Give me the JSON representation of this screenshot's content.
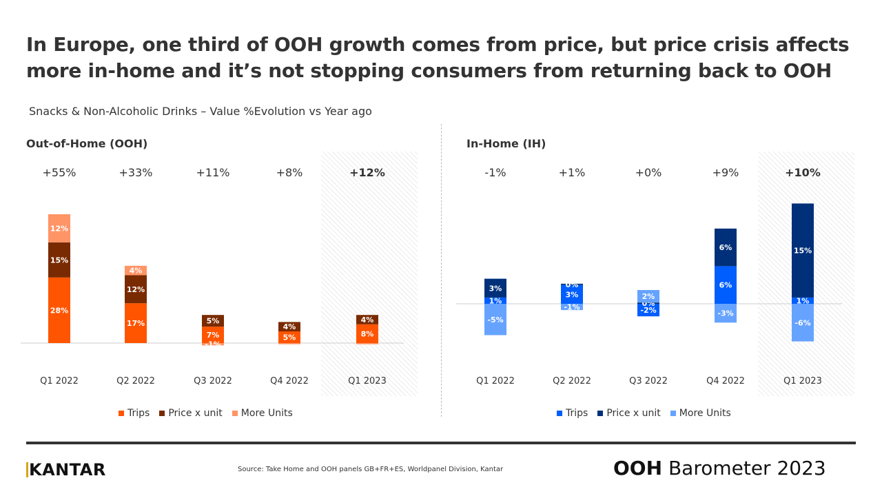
{
  "title": "In Europe, one third of OOH growth comes from price, but price crisis affects more in-home and it’s not stopping consumers from returning back to OOH",
  "subtitle": "Snacks & Non-Alcoholic Drinks – Value %Evolution vs Year ago",
  "footer": {
    "logo": "KANTAR",
    "source": "Source: Take Home and OOH panels GB+FR+ES, Worldpanel Division, Kantar",
    "brand_bold": "OOH",
    "brand_rest": " Barometer 2023"
  },
  "chart_data": [
    {
      "type": "bar",
      "stacked": true,
      "title": "Out-of-Home (OOH)",
      "categories": [
        "Q1 2022",
        "Q2 2022",
        "Q3 2022",
        "Q4 2022",
        "Q1 2023"
      ],
      "totals": [
        "+55%",
        "+33%",
        "+11%",
        "+8%",
        "+12%"
      ],
      "highlighted_category": "Q1 2023",
      "legend": "bottom",
      "series": [
        {
          "name": "Trips",
          "color": "#FF5500",
          "values": [
            28,
            17,
            7,
            5,
            8
          ],
          "labels": [
            "28%",
            "17%",
            "7%",
            "5%",
            "8%"
          ]
        },
        {
          "name": "Price x unit",
          "color": "#7A2A00",
          "values": [
            15,
            12,
            5,
            4,
            4
          ],
          "labels": [
            "15%",
            "12%",
            "5%",
            "4%",
            "4%"
          ]
        },
        {
          "name": "More Units",
          "color": "#FF9466",
          "values": [
            12,
            4,
            -1,
            -0.5,
            -0.5
          ],
          "labels": [
            "12%",
            "4%",
            "-1%",
            "",
            ""
          ]
        }
      ]
    },
    {
      "type": "bar",
      "stacked": true,
      "title": "In-Home (IH)",
      "categories": [
        "Q1 2022",
        "Q2 2022",
        "Q3 2022",
        "Q4 2022",
        "Q1 2023"
      ],
      "totals": [
        "-1%",
        "+1%",
        "+0%",
        "+9%",
        "+10%"
      ],
      "highlighted_category": "Q1 2023",
      "legend": "bottom",
      "series": [
        {
          "name": "Trips",
          "color": "#005EFF",
          "values": [
            1,
            3,
            -2,
            6,
            1
          ],
          "labels": [
            "1%",
            "3%",
            "-2%",
            "6%",
            "1%"
          ]
        },
        {
          "name": "Price x unit",
          "color": "#00307A",
          "values": [
            3,
            0.2,
            0.2,
            6,
            15
          ],
          "labels": [
            "3%",
            "0%",
            "0%",
            "6%",
            "15%"
          ]
        },
        {
          "name": "More Units",
          "color": "#66A3FF",
          "values": [
            -5,
            -1,
            2,
            -3,
            -6
          ],
          "labels": [
            "-5%",
            "-1%",
            "2%",
            "-3%",
            "-6%"
          ]
        }
      ]
    }
  ]
}
